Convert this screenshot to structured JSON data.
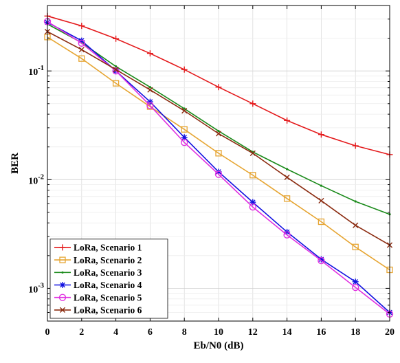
{
  "chart_data": {
    "type": "line",
    "xlabel": "Eb/N0 (dB)",
    "ylabel": "BER",
    "x": [
      0,
      2,
      4,
      6,
      8,
      10,
      12,
      14,
      16,
      18,
      20
    ],
    "xlim": [
      0,
      20
    ],
    "ylim": [
      0.0005,
      0.4
    ],
    "y_scale": "log",
    "grid": true,
    "legend_position": "bottom-left",
    "x_ticks": [
      "0",
      "2",
      "4",
      "6",
      "8",
      "10",
      "12",
      "14",
      "16",
      "18",
      "20"
    ],
    "y_ticks": [
      {
        "value": 0.1,
        "base": "10",
        "exp": "-1"
      },
      {
        "value": 0.01,
        "base": "10",
        "exp": "-2"
      },
      {
        "value": 0.001,
        "base": "10",
        "exp": "-3"
      }
    ],
    "series": [
      {
        "name": "LoRa, Scenario 1",
        "color": "#e41a1c",
        "marker": "plus",
        "values": [
          0.32,
          0.26,
          0.198,
          0.145,
          0.103,
          0.071,
          0.05,
          0.035,
          0.026,
          0.0205,
          0.017
        ]
      },
      {
        "name": "LoRa, Scenario 2",
        "color": "#e6a532",
        "marker": "square",
        "values": [
          0.205,
          0.13,
          0.077,
          0.047,
          0.029,
          0.0175,
          0.011,
          0.0067,
          0.0041,
          0.0024,
          0.00148
        ]
      },
      {
        "name": "LoRa, Scenario 3",
        "color": "#1a8a1a",
        "marker": "dot",
        "values": [
          0.27,
          0.182,
          0.11,
          0.071,
          0.045,
          0.028,
          0.018,
          0.0125,
          0.0088,
          0.0063,
          0.0048
        ]
      },
      {
        "name": "LoRa, Scenario 4",
        "color": "#1010e0",
        "marker": "asterisk",
        "values": [
          0.28,
          0.19,
          0.1,
          0.052,
          0.0245,
          0.0118,
          0.0062,
          0.0033,
          0.00185,
          0.00115,
          0.0006
        ]
      },
      {
        "name": "LoRa, Scenario 5",
        "color": "#e030e0",
        "marker": "circle",
        "values": [
          0.285,
          0.18,
          0.1,
          0.048,
          0.022,
          0.0112,
          0.0056,
          0.0031,
          0.0018,
          0.00102,
          0.00058
        ]
      },
      {
        "name": "LoRa, Scenario 6",
        "color": "#8b2b10",
        "marker": "x",
        "values": [
          0.23,
          0.157,
          0.103,
          0.067,
          0.043,
          0.0265,
          0.0175,
          0.0105,
          0.0064,
          0.0038,
          0.0025
        ]
      }
    ]
  }
}
